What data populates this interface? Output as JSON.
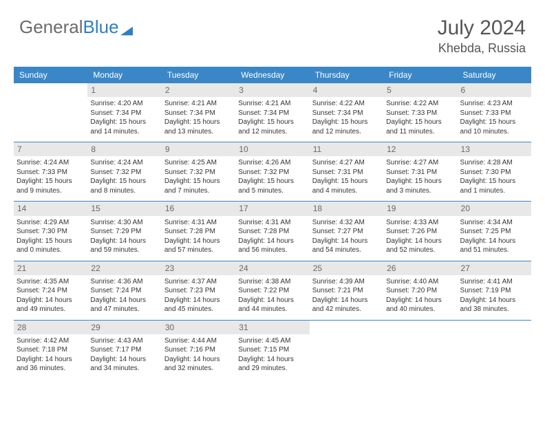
{
  "logo": {
    "part1": "General",
    "part2": "Blue"
  },
  "title": "July 2024",
  "location": "Khebda, Russia",
  "dayNames": [
    "Sunday",
    "Monday",
    "Tuesday",
    "Wednesday",
    "Thursday",
    "Friday",
    "Saturday"
  ],
  "colors": {
    "header_bg": "#3a87c8",
    "header_text": "#ffffff",
    "divider": "#3a87c8",
    "daynum_bg": "#e8e8e8",
    "daynum_text": "#686868",
    "body_text": "#333333",
    "logo_gray": "#6b6b6b",
    "logo_blue": "#2f7ec4"
  },
  "firstDayOffset": 1,
  "days": [
    {
      "n": 1,
      "sunrise": "4:20 AM",
      "sunset": "7:34 PM",
      "dl_h": 15,
      "dl_m": 14
    },
    {
      "n": 2,
      "sunrise": "4:21 AM",
      "sunset": "7:34 PM",
      "dl_h": 15,
      "dl_m": 13
    },
    {
      "n": 3,
      "sunrise": "4:21 AM",
      "sunset": "7:34 PM",
      "dl_h": 15,
      "dl_m": 12
    },
    {
      "n": 4,
      "sunrise": "4:22 AM",
      "sunset": "7:34 PM",
      "dl_h": 15,
      "dl_m": 12
    },
    {
      "n": 5,
      "sunrise": "4:22 AM",
      "sunset": "7:33 PM",
      "dl_h": 15,
      "dl_m": 11
    },
    {
      "n": 6,
      "sunrise": "4:23 AM",
      "sunset": "7:33 PM",
      "dl_h": 15,
      "dl_m": 10
    },
    {
      "n": 7,
      "sunrise": "4:24 AM",
      "sunset": "7:33 PM",
      "dl_h": 15,
      "dl_m": 9
    },
    {
      "n": 8,
      "sunrise": "4:24 AM",
      "sunset": "7:32 PM",
      "dl_h": 15,
      "dl_m": 8
    },
    {
      "n": 9,
      "sunrise": "4:25 AM",
      "sunset": "7:32 PM",
      "dl_h": 15,
      "dl_m": 7
    },
    {
      "n": 10,
      "sunrise": "4:26 AM",
      "sunset": "7:32 PM",
      "dl_h": 15,
      "dl_m": 5
    },
    {
      "n": 11,
      "sunrise": "4:27 AM",
      "sunset": "7:31 PM",
      "dl_h": 15,
      "dl_m": 4
    },
    {
      "n": 12,
      "sunrise": "4:27 AM",
      "sunset": "7:31 PM",
      "dl_h": 15,
      "dl_m": 3
    },
    {
      "n": 13,
      "sunrise": "4:28 AM",
      "sunset": "7:30 PM",
      "dl_h": 15,
      "dl_m": 1
    },
    {
      "n": 14,
      "sunrise": "4:29 AM",
      "sunset": "7:30 PM",
      "dl_h": 15,
      "dl_m": 0
    },
    {
      "n": 15,
      "sunrise": "4:30 AM",
      "sunset": "7:29 PM",
      "dl_h": 14,
      "dl_m": 59
    },
    {
      "n": 16,
      "sunrise": "4:31 AM",
      "sunset": "7:28 PM",
      "dl_h": 14,
      "dl_m": 57
    },
    {
      "n": 17,
      "sunrise": "4:31 AM",
      "sunset": "7:28 PM",
      "dl_h": 14,
      "dl_m": 56
    },
    {
      "n": 18,
      "sunrise": "4:32 AM",
      "sunset": "7:27 PM",
      "dl_h": 14,
      "dl_m": 54
    },
    {
      "n": 19,
      "sunrise": "4:33 AM",
      "sunset": "7:26 PM",
      "dl_h": 14,
      "dl_m": 52
    },
    {
      "n": 20,
      "sunrise": "4:34 AM",
      "sunset": "7:25 PM",
      "dl_h": 14,
      "dl_m": 51
    },
    {
      "n": 21,
      "sunrise": "4:35 AM",
      "sunset": "7:24 PM",
      "dl_h": 14,
      "dl_m": 49
    },
    {
      "n": 22,
      "sunrise": "4:36 AM",
      "sunset": "7:24 PM",
      "dl_h": 14,
      "dl_m": 47
    },
    {
      "n": 23,
      "sunrise": "4:37 AM",
      "sunset": "7:23 PM",
      "dl_h": 14,
      "dl_m": 45
    },
    {
      "n": 24,
      "sunrise": "4:38 AM",
      "sunset": "7:22 PM",
      "dl_h": 14,
      "dl_m": 44
    },
    {
      "n": 25,
      "sunrise": "4:39 AM",
      "sunset": "7:21 PM",
      "dl_h": 14,
      "dl_m": 42
    },
    {
      "n": 26,
      "sunrise": "4:40 AM",
      "sunset": "7:20 PM",
      "dl_h": 14,
      "dl_m": 40
    },
    {
      "n": 27,
      "sunrise": "4:41 AM",
      "sunset": "7:19 PM",
      "dl_h": 14,
      "dl_m": 38
    },
    {
      "n": 28,
      "sunrise": "4:42 AM",
      "sunset": "7:18 PM",
      "dl_h": 14,
      "dl_m": 36
    },
    {
      "n": 29,
      "sunrise": "4:43 AM",
      "sunset": "7:17 PM",
      "dl_h": 14,
      "dl_m": 34
    },
    {
      "n": 30,
      "sunrise": "4:44 AM",
      "sunset": "7:16 PM",
      "dl_h": 14,
      "dl_m": 32
    },
    {
      "n": 31,
      "sunrise": "4:45 AM",
      "sunset": "7:15 PM",
      "dl_h": 14,
      "dl_m": 29
    }
  ],
  "labels": {
    "sunrise": "Sunrise:",
    "sunset": "Sunset:",
    "daylight": "Daylight:",
    "hours": "hours",
    "and": "and",
    "minutes": "minutes."
  }
}
